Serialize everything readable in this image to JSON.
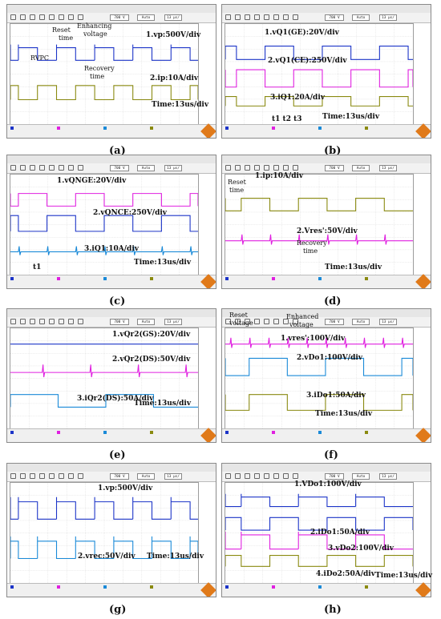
{
  "colors": {
    "blue": "#1c34c8",
    "pink": "#e020e0",
    "olive": "#8a8a10",
    "cyan": "#1a8ad8",
    "grid": "#cfcfcf"
  },
  "panels": [
    {
      "id": "a",
      "caption": "(a)",
      "labels": [
        {
          "text": "1.vp:500V/div",
          "cls": ""
        },
        {
          "text": "2.ip:10A/div",
          "cls": ""
        },
        {
          "text": "Time:13us/div",
          "cls": ""
        },
        {
          "text": "Reset",
          "cls": "small"
        },
        {
          "text": "time",
          "cls": "small"
        },
        {
          "text": "Enhancing",
          "cls": "small"
        },
        {
          "text": "voltage",
          "cls": "small"
        },
        {
          "text": "RVPC",
          "cls": "small"
        },
        {
          "text": "Recovery",
          "cls": "small"
        },
        {
          "text": "time",
          "cls": "small"
        }
      ]
    },
    {
      "id": "b",
      "caption": "(b)",
      "labels": [
        {
          "text": "1.vQ1(GE):20V/div",
          "cls": ""
        },
        {
          "text": "2.vQ1(CE):250V/div",
          "cls": ""
        },
        {
          "text": "3.iQ1:20A/div",
          "cls": ""
        },
        {
          "text": "Time:13us/div",
          "cls": ""
        },
        {
          "text": "t1 t2 t3",
          "cls": ""
        }
      ]
    },
    {
      "id": "c",
      "caption": "(c)",
      "labels": [
        {
          "text": "1.vQNGE:20V/div",
          "cls": ""
        },
        {
          "text": "2.vQNCE:250V/div",
          "cls": ""
        },
        {
          "text": "3.iQ1:10A/div",
          "cls": ""
        },
        {
          "text": "Time:13us/div",
          "cls": ""
        },
        {
          "text": "t1",
          "cls": ""
        }
      ]
    },
    {
      "id": "d",
      "caption": "(d)",
      "labels": [
        {
          "text": "1.ip:10A/div",
          "cls": ""
        },
        {
          "text": "2.Vres':50V/div",
          "cls": ""
        },
        {
          "text": "Time:13us/div",
          "cls": ""
        },
        {
          "text": "Reset",
          "cls": "small"
        },
        {
          "text": "time",
          "cls": "small"
        },
        {
          "text": "Recovery",
          "cls": "small"
        },
        {
          "text": "time",
          "cls": "small"
        }
      ]
    },
    {
      "id": "e",
      "caption": "(e)",
      "labels": [
        {
          "text": "1.vQr2(GS):20V/div",
          "cls": ""
        },
        {
          "text": "2.vQr2(DS):50V/div",
          "cls": ""
        },
        {
          "text": "3.iQr2(DS):50A/div",
          "cls": ""
        },
        {
          "text": "Time:13us/div",
          "cls": ""
        }
      ]
    },
    {
      "id": "f",
      "caption": "(f)",
      "labels": [
        {
          "text": "1.vres':100V/div",
          "cls": ""
        },
        {
          "text": "2.vDo1:100V/div",
          "cls": ""
        },
        {
          "text": "3.iDo1:50A/div",
          "cls": ""
        },
        {
          "text": "Time:13us/div",
          "cls": ""
        },
        {
          "text": "Reset",
          "cls": "small"
        },
        {
          "text": "voltage",
          "cls": "small"
        },
        {
          "text": "Enhanced",
          "cls": "small"
        },
        {
          "text": "voltage",
          "cls": "small"
        }
      ]
    },
    {
      "id": "g",
      "caption": "(g)",
      "labels": [
        {
          "text": "1.vp:500V/div",
          "cls": ""
        },
        {
          "text": "2.vrec:50V/div",
          "cls": ""
        },
        {
          "text": "Time:13us/div",
          "cls": ""
        }
      ]
    },
    {
      "id": "h",
      "caption": "(h)",
      "labels": [
        {
          "text": "1.VDo1:100V/div",
          "cls": ""
        },
        {
          "text": "2.iDo1:50A/div",
          "cls": ""
        },
        {
          "text": "3.vDo2:100V/div",
          "cls": ""
        },
        {
          "text": "4.iDo2:50A/div",
          "cls": ""
        },
        {
          "text": "Time:13us/div",
          "cls": ""
        }
      ]
    }
  ],
  "toolbar": {
    "box1": "700 V",
    "box2": "Auto",
    "box3": "13 μs/",
    "box4": "1.25 GSa/s",
    "box5": "5.2 μs"
  }
}
